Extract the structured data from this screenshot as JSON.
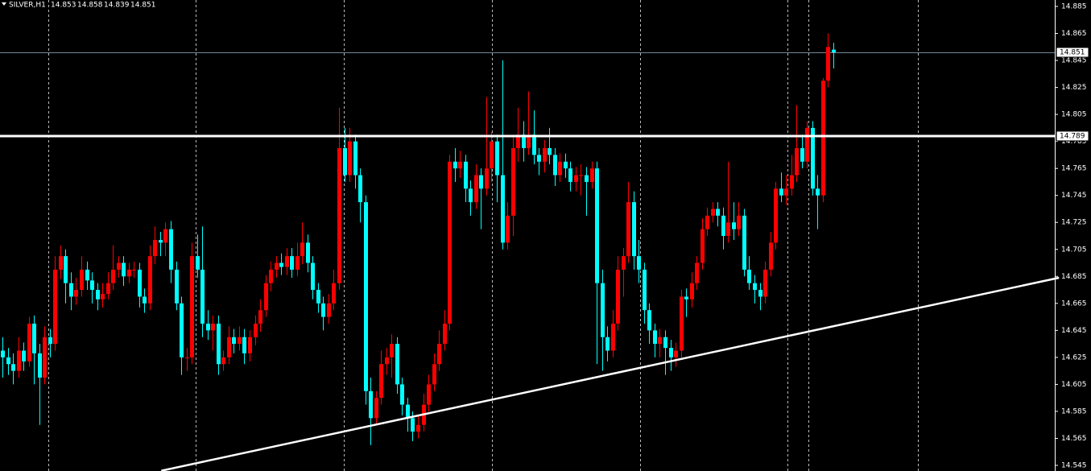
{
  "chart_data": {
    "type": "candlestick",
    "title": "SILVER,H1",
    "up_color": "#ff0000",
    "down_color": "#00ffff",
    "ylim": [
      14.545,
      14.885
    ],
    "yticks": [
      14.885,
      14.865,
      14.845,
      14.825,
      14.805,
      14.785,
      14.765,
      14.745,
      14.725,
      14.705,
      14.685,
      14.665,
      14.645,
      14.625,
      14.605,
      14.585,
      14.565,
      14.545
    ],
    "xgrid": [
      8.7,
      36.75,
      64.9,
      93.1,
      121.3,
      149.3,
      153.3,
      174.1
    ],
    "hline": 14.789,
    "bid": 14.851,
    "trendline": {
      "from": [
        30.2,
        14.541
      ],
      "to": [
        200.9,
        14.684
      ]
    },
    "candles": [
      [
        14.63,
        14.64,
        14.61,
        14.625
      ],
      [
        14.625,
        14.632,
        14.612,
        14.62
      ],
      [
        14.62,
        14.628,
        14.605,
        14.615
      ],
      [
        14.615,
        14.64,
        14.61,
        14.63
      ],
      [
        14.63,
        14.636,
        14.615,
        14.622
      ],
      [
        14.622,
        14.655,
        14.618,
        14.65
      ],
      [
        14.65,
        14.656,
        14.605,
        14.628
      ],
      [
        14.628,
        14.635,
        14.575,
        14.61
      ],
      [
        14.61,
        14.648,
        14.605,
        14.64
      ],
      [
        14.64,
        14.646,
        14.625,
        14.635
      ],
      [
        14.635,
        14.7,
        14.63,
        14.69
      ],
      [
        14.69,
        14.708,
        14.683,
        14.7
      ],
      [
        14.7,
        14.705,
        14.665,
        14.68
      ],
      [
        14.68,
        14.688,
        14.66,
        14.67
      ],
      [
        14.67,
        14.684,
        14.664,
        14.675
      ],
      [
        14.675,
        14.7,
        14.67,
        14.69
      ],
      [
        14.69,
        14.696,
        14.675,
        14.682
      ],
      [
        14.682,
        14.688,
        14.665,
        14.675
      ],
      [
        14.675,
        14.68,
        14.66,
        14.668
      ],
      [
        14.668,
        14.68,
        14.662,
        14.672
      ],
      [
        14.672,
        14.688,
        14.668,
        14.68
      ],
      [
        14.68,
        14.708,
        14.675,
        14.69
      ],
      [
        14.69,
        14.7,
        14.684,
        14.695
      ],
      [
        14.695,
        14.7,
        14.678,
        14.685
      ],
      [
        14.685,
        14.695,
        14.68,
        14.69
      ],
      [
        14.69,
        14.696,
        14.684,
        14.69
      ],
      [
        14.69,
        14.695,
        14.662,
        14.67
      ],
      [
        14.67,
        14.676,
        14.658,
        14.665
      ],
      [
        14.665,
        14.708,
        14.66,
        14.7
      ],
      [
        14.7,
        14.722,
        14.694,
        14.712
      ],
      [
        14.712,
        14.718,
        14.7,
        14.71
      ],
      [
        14.71,
        14.725,
        14.7,
        14.72
      ],
      [
        14.72,
        14.726,
        14.68,
        14.69
      ],
      [
        14.69,
        14.696,
        14.66,
        14.665
      ],
      [
        14.665,
        14.67,
        14.612,
        14.625
      ],
      [
        14.625,
        14.632,
        14.615,
        14.625
      ],
      [
        14.625,
        14.71,
        14.62,
        14.7
      ],
      [
        14.7,
        14.716,
        14.684,
        14.69
      ],
      [
        14.69,
        14.722,
        14.64,
        14.65
      ],
      [
        14.65,
        14.66,
        14.638,
        14.645
      ],
      [
        14.645,
        14.656,
        14.63,
        14.65
      ],
      [
        14.65,
        14.656,
        14.612,
        14.62
      ],
      [
        14.62,
        14.63,
        14.615,
        14.625
      ],
      [
        14.625,
        14.648,
        14.62,
        14.64
      ],
      [
        14.64,
        14.646,
        14.628,
        14.635
      ],
      [
        14.635,
        14.648,
        14.63,
        14.64
      ],
      [
        14.64,
        14.646,
        14.62,
        14.628
      ],
      [
        14.628,
        14.645,
        14.622,
        14.64
      ],
      [
        14.64,
        14.656,
        14.634,
        14.65
      ],
      [
        14.65,
        14.668,
        14.644,
        14.66
      ],
      [
        14.66,
        14.686,
        14.655,
        14.68
      ],
      [
        14.68,
        14.696,
        14.674,
        14.69
      ],
      [
        14.69,
        14.7,
        14.684,
        14.695
      ],
      [
        14.695,
        14.702,
        14.686,
        14.692
      ],
      [
        14.692,
        14.706,
        14.686,
        14.7
      ],
      [
        14.7,
        14.706,
        14.684,
        14.69
      ],
      [
        14.69,
        14.71,
        14.685,
        14.7
      ],
      [
        14.7,
        14.725,
        14.694,
        14.71
      ],
      [
        14.71,
        14.716,
        14.688,
        14.695
      ],
      [
        14.695,
        14.7,
        14.668,
        14.675
      ],
      [
        14.675,
        14.68,
        14.658,
        14.665
      ],
      [
        14.665,
        14.67,
        14.645,
        14.655
      ],
      [
        14.655,
        14.672,
        14.65,
        14.665
      ],
      [
        14.665,
        14.69,
        14.66,
        14.68
      ],
      [
        14.68,
        14.81,
        14.675,
        14.78
      ],
      [
        14.78,
        14.795,
        14.755,
        14.76
      ],
      [
        14.76,
        14.795,
        14.755,
        14.785
      ],
      [
        14.785,
        14.79,
        14.75,
        14.76
      ],
      [
        14.76,
        14.765,
        14.725,
        14.74
      ],
      [
        14.74,
        14.745,
        14.59,
        14.6
      ],
      [
        14.6,
        14.61,
        14.56,
        14.58
      ],
      [
        14.58,
        14.6,
        14.575,
        14.595
      ],
      [
        14.595,
        14.63,
        14.59,
        14.62
      ],
      [
        14.62,
        14.632,
        14.612,
        14.625
      ],
      [
        14.625,
        14.642,
        14.61,
        14.635
      ],
      [
        14.635,
        14.64,
        14.598,
        14.605
      ],
      [
        14.605,
        14.61,
        14.582,
        14.59
      ],
      [
        14.59,
        14.595,
        14.57,
        14.58
      ],
      [
        14.58,
        14.585,
        14.563,
        14.57
      ],
      [
        14.57,
        14.582,
        14.565,
        14.575
      ],
      [
        14.575,
        14.598,
        14.57,
        14.59
      ],
      [
        14.59,
        14.612,
        14.585,
        14.605
      ],
      [
        14.605,
        14.628,
        14.6,
        14.62
      ],
      [
        14.62,
        14.645,
        14.615,
        14.635
      ],
      [
        14.635,
        14.66,
        14.63,
        14.65
      ],
      [
        14.65,
        14.775,
        14.645,
        14.77
      ],
      [
        14.77,
        14.78,
        14.755,
        14.765
      ],
      [
        14.765,
        14.778,
        14.758,
        14.77
      ],
      [
        14.77,
        14.775,
        14.74,
        14.75
      ],
      [
        14.75,
        14.756,
        14.73,
        14.74
      ],
      [
        14.74,
        14.768,
        14.735,
        14.76
      ],
      [
        14.76,
        14.765,
        14.72,
        14.75
      ],
      [
        14.75,
        14.818,
        14.745,
        14.765
      ],
      [
        14.765,
        14.792,
        14.755,
        14.785
      ],
      [
        14.785,
        14.79,
        14.74,
        14.76
      ],
      [
        14.76,
        14.845,
        14.705,
        14.71
      ],
      [
        14.71,
        14.74,
        14.705,
        14.73
      ],
      [
        14.73,
        14.788,
        14.715,
        14.78
      ],
      [
        14.78,
        14.81,
        14.77,
        14.79
      ],
      [
        14.79,
        14.8,
        14.77,
        14.78
      ],
      [
        14.78,
        14.822,
        14.775,
        14.79
      ],
      [
        14.79,
        14.808,
        14.768,
        14.775
      ],
      [
        14.775,
        14.78,
        14.76,
        14.77
      ],
      [
        14.77,
        14.786,
        14.762,
        14.78
      ],
      [
        14.78,
        14.795,
        14.768,
        14.775
      ],
      [
        14.775,
        14.78,
        14.752,
        14.76
      ],
      [
        14.76,
        14.776,
        14.755,
        14.77
      ],
      [
        14.77,
        14.776,
        14.758,
        14.765
      ],
      [
        14.765,
        14.77,
        14.748,
        14.755
      ],
      [
        14.755,
        14.766,
        14.748,
        14.76
      ],
      [
        14.76,
        14.768,
        14.745,
        14.76
      ],
      [
        14.76,
        14.766,
        14.73,
        14.755
      ],
      [
        14.755,
        14.77,
        14.75,
        14.765
      ],
      [
        14.765,
        14.77,
        14.62,
        14.68
      ],
      [
        14.68,
        14.69,
        14.615,
        14.64
      ],
      [
        14.64,
        14.648,
        14.622,
        14.63
      ],
      [
        14.63,
        14.66,
        14.625,
        14.65
      ],
      [
        14.65,
        14.7,
        14.645,
        14.69
      ],
      [
        14.69,
        14.706,
        14.67,
        14.7
      ],
      [
        14.7,
        14.755,
        14.695,
        14.74
      ],
      [
        14.74,
        14.748,
        14.69,
        14.7
      ],
      [
        14.7,
        14.712,
        14.68,
        14.69
      ],
      [
        14.69,
        14.695,
        14.65,
        14.66
      ],
      [
        14.66,
        14.665,
        14.635,
        14.645
      ],
      [
        14.645,
        14.65,
        14.625,
        14.635
      ],
      [
        14.635,
        14.646,
        14.625,
        14.64
      ],
      [
        14.64,
        14.645,
        14.612,
        14.632
      ],
      [
        14.632,
        14.638,
        14.615,
        14.625
      ],
      [
        14.625,
        14.636,
        14.618,
        14.63
      ],
      [
        14.63,
        14.675,
        14.625,
        14.67
      ],
      [
        14.67,
        14.676,
        14.655,
        14.668
      ],
      [
        14.668,
        14.688,
        14.662,
        14.68
      ],
      [
        14.68,
        14.7,
        14.675,
        14.695
      ],
      [
        14.695,
        14.728,
        14.69,
        14.72
      ],
      [
        14.72,
        14.736,
        14.715,
        14.73
      ],
      [
        14.73,
        14.74,
        14.725,
        14.735
      ],
      [
        14.735,
        14.74,
        14.722,
        14.73
      ],
      [
        14.73,
        14.736,
        14.705,
        14.715
      ],
      [
        14.715,
        14.77,
        14.71,
        14.725
      ],
      [
        14.725,
        14.74,
        14.712,
        14.72
      ],
      [
        14.72,
        14.74,
        14.715,
        14.73
      ],
      [
        14.73,
        14.735,
        14.685,
        14.69
      ],
      [
        14.69,
        14.7,
        14.675,
        14.68
      ],
      [
        14.68,
        14.686,
        14.665,
        14.675
      ],
      [
        14.675,
        14.68,
        14.66,
        14.67
      ],
      [
        14.67,
        14.696,
        14.665,
        14.69
      ],
      [
        14.69,
        14.718,
        14.685,
        14.71
      ],
      [
        14.71,
        14.755,
        14.705,
        14.75
      ],
      [
        14.75,
        14.762,
        14.74,
        14.745
      ],
      [
        14.745,
        14.76,
        14.738,
        14.75
      ],
      [
        14.75,
        14.775,
        14.745,
        14.76
      ],
      [
        14.76,
        14.812,
        14.755,
        14.78
      ],
      [
        14.78,
        14.79,
        14.765,
        14.77
      ],
      [
        14.77,
        14.8,
        14.765,
        14.795
      ],
      [
        14.795,
        14.8,
        14.745,
        14.75
      ],
      [
        14.75,
        14.76,
        14.72,
        14.745
      ],
      [
        14.745,
        14.832,
        14.74,
        14.83
      ],
      [
        14.83,
        14.865,
        14.825,
        14.855
      ],
      [
        14.853,
        14.858,
        14.839,
        14.851
      ]
    ]
  }
}
